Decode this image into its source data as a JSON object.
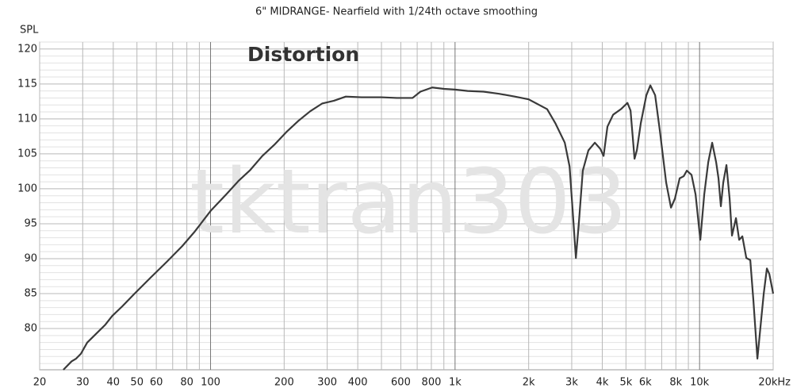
{
  "chart_data": {
    "type": "line",
    "title": "6\" MIDRANGE- Nearfield with 1/24th octave smoothing",
    "y_label": "SPL",
    "annotations": [
      "Distortion",
      "tktran303"
    ],
    "log_x": true,
    "grid": true,
    "xlim": [
      20,
      20000
    ],
    "ylim": [
      74.1,
      121
    ],
    "xticks": [
      20,
      30,
      40,
      50,
      60,
      80,
      100,
      200,
      300,
      400,
      600,
      800,
      {
        "value": 1000,
        "label": "1k"
      },
      {
        "value": 2000,
        "label": "2k"
      },
      {
        "value": 3000,
        "label": "3k"
      },
      {
        "value": 4000,
        "label": "4k"
      },
      {
        "value": 5000,
        "label": "5k"
      },
      {
        "value": 6000,
        "label": "6k"
      },
      {
        "value": 8000,
        "label": "8k"
      },
      {
        "value": 10000,
        "label": "10k"
      },
      {
        "value": 20000,
        "label": "20kHz"
      }
    ],
    "xminorticks": [
      70,
      90,
      500,
      700,
      900,
      7000,
      9000
    ],
    "yticks": [
      80,
      85,
      90,
      95,
      100,
      105,
      110,
      115,
      120
    ],
    "yminorticks": [
      75,
      76,
      77,
      78,
      79,
      81,
      82,
      83,
      84,
      86,
      87,
      88,
      89,
      91,
      92,
      93,
      94,
      96,
      97,
      98,
      99,
      101,
      102,
      103,
      104,
      106,
      107,
      108,
      109,
      111,
      112,
      113,
      114,
      116,
      117,
      118,
      119,
      121
    ],
    "x": [
      25,
      27,
      28.2,
      29.5,
      31.3,
      33.7,
      37,
      39.6,
      43.6,
      48.9,
      56.9,
      66,
      76.6,
      85.8,
      100.4,
      115.9,
      129.9,
      145.4,
      162.8,
      182.3,
      203.9,
      228.2,
      255.6,
      285.9,
      319.6,
      357.5,
      414.6,
      498.4,
      577.9,
      670.1,
      721.7,
      806.5,
      901.3,
      1000,
      1126,
      1306,
      1514,
      1755,
      2000,
      2380,
      2570,
      2810,
      2940,
      3050,
      3120,
      3210,
      3330,
      3510,
      3730,
      3930,
      4050,
      4200,
      4430,
      4770,
      5070,
      5220,
      5420,
      5540,
      5750,
      6060,
      6290,
      6580,
      6880,
      7300,
      7640,
      7930,
      8290,
      8610,
      8870,
      9270,
      9630,
      10070,
      10450,
      10850,
      11260,
      11690,
      11950,
      12220,
      12500,
      12880,
      13270,
      13570,
      14090,
      14520,
      14960,
      15530,
      16120,
      16610,
      17240,
      17900,
      18300,
      18850,
      19290,
      20000
    ],
    "series": [
      {
        "color": "#3a3a3a",
        "values": [
          74.1,
          75.3,
          75.7,
          76.4,
          78.0,
          79.1,
          80.5,
          81.8,
          83.2,
          85.0,
          87.3,
          89.5,
          91.8,
          93.8,
          96.9,
          99.2,
          101.1,
          102.7,
          104.7,
          106.3,
          108.1,
          109.7,
          111.1,
          112.2,
          112.6,
          113.2,
          113.1,
          113.1,
          113.0,
          113.0,
          113.9,
          114.5,
          114.3,
          114.2,
          114.0,
          113.9,
          113.6,
          113.2,
          112.8,
          111.4,
          109.4,
          106.6,
          103.2,
          95.2,
          90.1,
          95.2,
          102.6,
          105.5,
          106.6,
          105.7,
          104.7,
          108.9,
          110.6,
          111.4,
          112.3,
          111.2,
          104.3,
          105.5,
          109.4,
          113.4,
          114.8,
          113.4,
          108.3,
          100.9,
          97.3,
          98.6,
          101.5,
          101.8,
          102.6,
          102.0,
          99.2,
          92.7,
          99.2,
          103.8,
          106.6,
          103.8,
          101.5,
          97.5,
          100.9,
          103.4,
          98.6,
          93.3,
          95.8,
          92.7,
          93.2,
          90.1,
          89.8,
          83.9,
          75.7,
          81.6,
          85.0,
          88.6,
          87.8,
          85.0
        ]
      }
    ]
  }
}
